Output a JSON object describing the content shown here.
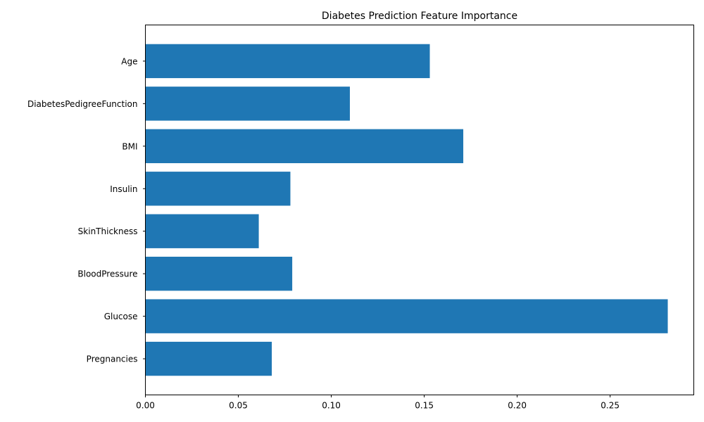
{
  "chart_data": {
    "type": "bar",
    "orientation": "horizontal",
    "title": "Diabetes Prediction Feature Importance",
    "xlabel": "",
    "ylabel": "",
    "categories": [
      "Pregnancies",
      "Glucose",
      "BloodPressure",
      "SkinThickness",
      "Insulin",
      "BMI",
      "DiabetesPedigreeFunction",
      "Age"
    ],
    "values": [
      0.068,
      0.281,
      0.079,
      0.061,
      0.078,
      0.171,
      0.11,
      0.153
    ],
    "xlim": [
      0,
      0.295
    ],
    "xticks": [
      0.0,
      0.05,
      0.1,
      0.15,
      0.2,
      0.25
    ],
    "xtick_labels": [
      "0.00",
      "0.05",
      "0.10",
      "0.15",
      "0.20",
      "0.25"
    ],
    "bar_color": "#1f77b4",
    "grid": false,
    "legend": "none"
  }
}
